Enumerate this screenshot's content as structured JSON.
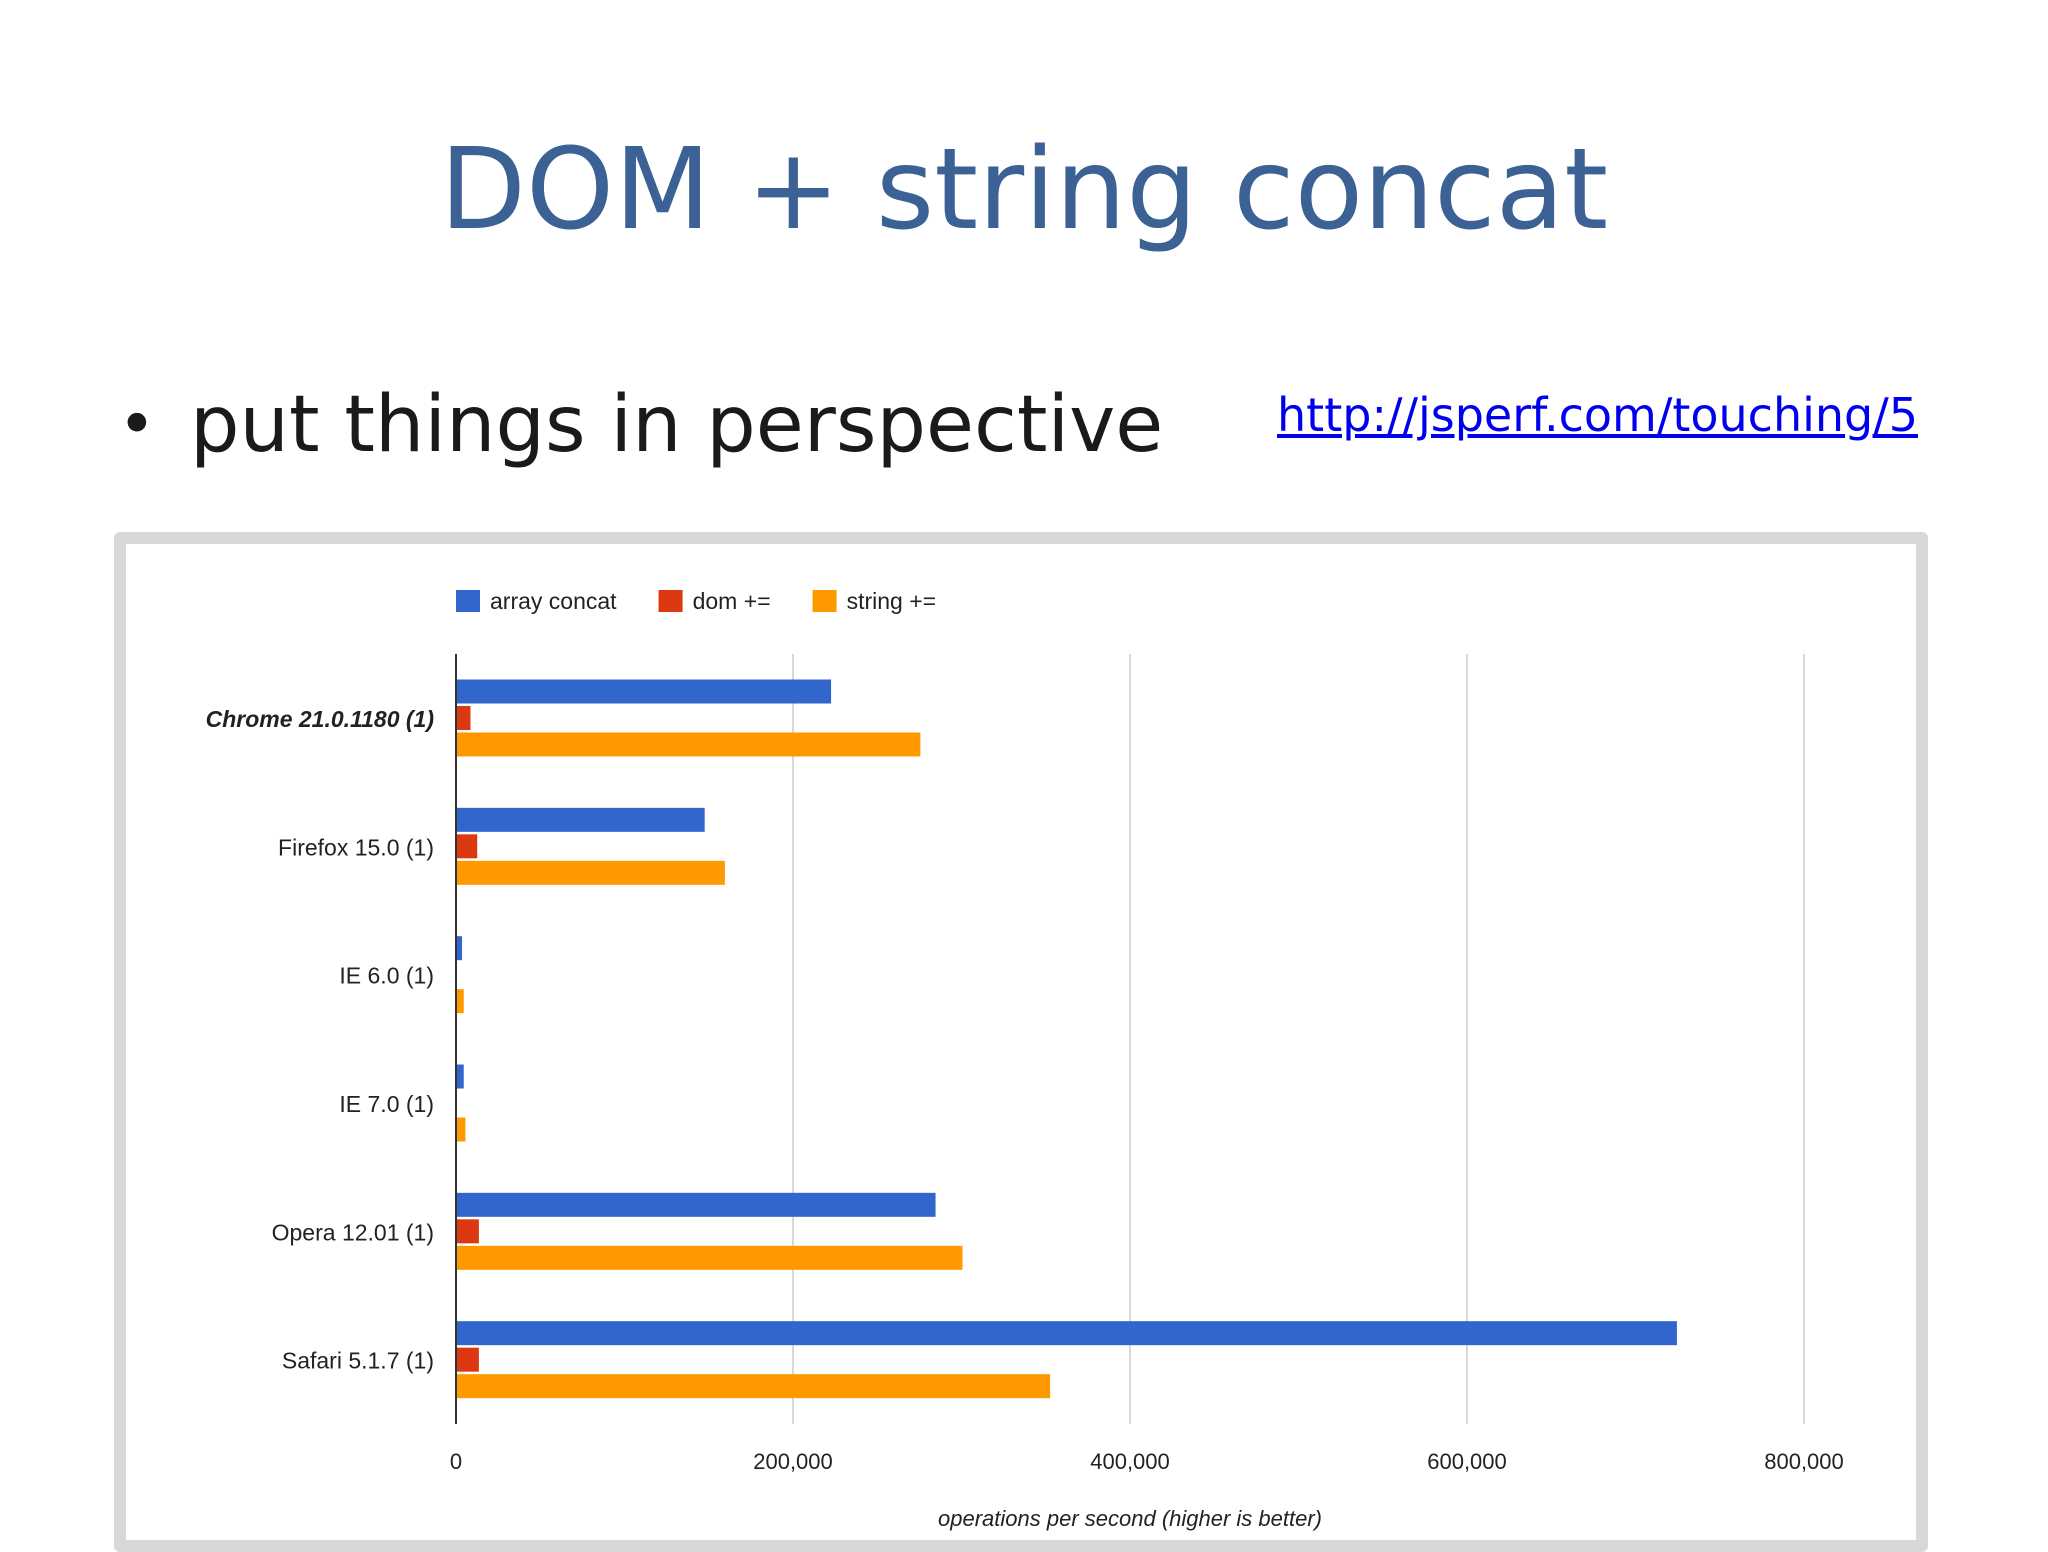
{
  "slide": {
    "title": "DOM + string concat",
    "bullet_text": "put things in perspective",
    "link_text": "http://jsperf.com/touching/5"
  },
  "chart_data": {
    "type": "bar",
    "orientation": "horizontal",
    "categories": [
      "Chrome 21.0.1180 (1)",
      "Firefox 15.0 (1)",
      "IE 6.0 (1)",
      "IE 7.0 (1)",
      "Opera 12.01 (1)",
      "Safari 5.1.7 (1)"
    ],
    "series": [
      {
        "name": "array concat",
        "color": "#3366cc",
        "values": [
          222000,
          147000,
          3000,
          4000,
          284000,
          724000
        ]
      },
      {
        "name": "dom +=",
        "color": "#dc3912",
        "values": [
          8000,
          12000,
          0,
          0,
          13000,
          13000
        ]
      },
      {
        "name": "string +=",
        "color": "#ff9900",
        "values": [
          275000,
          159000,
          4000,
          5000,
          300000,
          352000
        ]
      }
    ],
    "xlim": [
      0,
      800000
    ],
    "xticks": [
      0,
      200000,
      400000,
      600000,
      800000
    ],
    "xtick_labels": [
      "0",
      "200,000",
      "400,000",
      "600,000",
      "800,000"
    ],
    "xlabel": "operations per second (higher is better)",
    "ylabel": "",
    "highlight_category": "Chrome 21.0.1180 (1)",
    "legend_position": "top",
    "grid": true
  }
}
